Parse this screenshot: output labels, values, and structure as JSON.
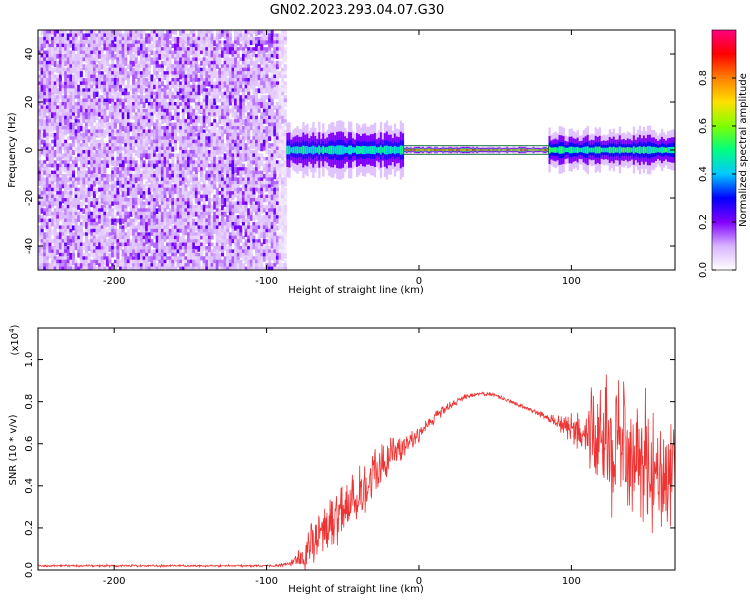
{
  "title": "GN02.2023.293.04.07.G30",
  "chart_data": [
    {
      "type": "heatmap",
      "xlabel": "Height of straight line (km)",
      "ylabel": "Frequency (Hz)",
      "xlim": [
        -250,
        168
      ],
      "ylim": [
        -50,
        50
      ],
      "xticks": [
        -200,
        -100,
        0,
        100
      ],
      "xtick_labels": [
        "-200",
        "-100",
        "0",
        "100"
      ],
      "yticks": [
        -40,
        -20,
        0,
        20,
        40
      ],
      "ytick_labels": [
        "-40",
        "-20",
        "0",
        "20",
        "40"
      ],
      "colorbar": {
        "label": "Normalized spectral amplitude",
        "range": [
          0,
          1
        ],
        "ticks": [
          0.0,
          0.2,
          0.4,
          0.6,
          0.8
        ],
        "tick_labels": [
          "0.0",
          "0.2",
          "0.4",
          "0.6",
          "0.8"
        ],
        "colors": [
          "#ffffff",
          "#d8b4ff",
          "#8000ff",
          "#0000ff",
          "#00c8ff",
          "#00ff80",
          "#80ff00",
          "#ffe000",
          "#ff8000",
          "#ff0000",
          "#ff0080"
        ]
      },
      "regions": [
        {
          "x_range": [
            -250,
            -87
          ],
          "freq_range": [
            -50,
            50
          ],
          "pattern": "broadband noise",
          "amplitude": 0.15
        },
        {
          "x_range": [
            -87,
            -10
          ],
          "freq_range": [
            -6,
            6
          ],
          "pattern": "narrow carrier",
          "amplitude": 0.5
        },
        {
          "x_range": [
            -10,
            85
          ],
          "freq_range": [
            -1,
            1
          ],
          "pattern": "narrow carrier",
          "amplitude": 0.95
        },
        {
          "x_range": [
            85,
            168
          ],
          "freq_range": [
            -5,
            5
          ],
          "pattern": "narrow carrier",
          "amplitude": 0.55
        }
      ]
    },
    {
      "type": "line",
      "xlabel": "Height of straight line (km)",
      "ylabel": "SNR (10 * v/v)",
      "scale_label": "(x10",
      "scale_exponent": "4",
      "scale_close": ")",
      "xlim": [
        -250,
        168
      ],
      "ylim": [
        0,
        1.15
      ],
      "xticks": [
        -200,
        -100,
        0,
        100
      ],
      "xtick_labels": [
        "-200",
        "-100",
        "0",
        "100"
      ],
      "yticks": [
        0.0,
        0.2,
        0.4,
        0.6,
        0.8,
        1.0
      ],
      "ytick_labels": [
        "0.0",
        "0.2",
        "0.4",
        "0.6",
        "0.8",
        "1.0"
      ],
      "color": "#ee3333",
      "series": [
        {
          "x": [
            -250,
            -200,
            -150,
            -110,
            -95,
            -85,
            -78,
            -70,
            -60,
            -50,
            -40,
            -30,
            -20,
            -10,
            0,
            10,
            20,
            30,
            40,
            50,
            60,
            70,
            80,
            90,
            100,
            110,
            120,
            130,
            140,
            150,
            160,
            168
          ],
          "y": [
            0.02,
            0.02,
            0.02,
            0.02,
            0.02,
            0.03,
            0.05,
            0.13,
            0.2,
            0.3,
            0.36,
            0.45,
            0.53,
            0.6,
            0.65,
            0.72,
            0.78,
            0.82,
            0.84,
            0.83,
            0.8,
            0.77,
            0.74,
            0.7,
            0.67,
            0.65,
            0.62,
            0.6,
            0.55,
            0.52,
            0.48,
            0.45
          ],
          "spread": [
            0.005,
            0.005,
            0.005,
            0.005,
            0.005,
            0.01,
            0.05,
            0.12,
            0.15,
            0.15,
            0.14,
            0.13,
            0.1,
            0.06,
            0.04,
            0.03,
            0.02,
            0.015,
            0.01,
            0.01,
            0.01,
            0.01,
            0.015,
            0.03,
            0.08,
            0.15,
            0.3,
            0.35,
            0.33,
            0.3,
            0.28,
            0.25
          ]
        }
      ]
    }
  ]
}
